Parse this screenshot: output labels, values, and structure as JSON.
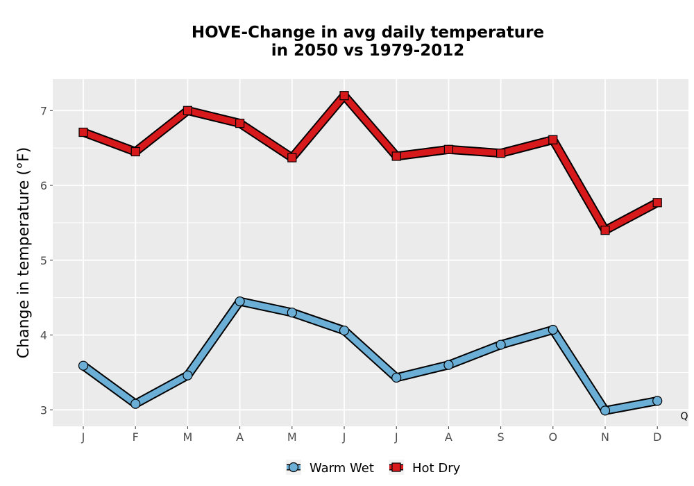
{
  "chart_data": {
    "type": "line",
    "title_line1": "HOVE-Change in avg daily temperature",
    "title_line2": "in 2050 vs 1979-2012",
    "ylabel": "Change in temperature (°F)",
    "xlabel": "",
    "categories": [
      "J",
      "F",
      "M",
      "A",
      "M",
      "J",
      "J",
      "A",
      "S",
      "O",
      "N",
      "D"
    ],
    "yticks": [
      3,
      4,
      5,
      6,
      7
    ],
    "ylim": [
      2.78,
      7.42
    ],
    "grid": true,
    "legend_position": "bottom",
    "series": [
      {
        "name": "Warm Wet",
        "marker": "circle",
        "color": "#6baed6",
        "values": [
          3.59,
          3.08,
          3.46,
          4.45,
          4.3,
          4.06,
          3.43,
          3.6,
          3.87,
          4.07,
          2.99,
          3.12
        ]
      },
      {
        "name": "Hot Dry",
        "marker": "square",
        "color": "#d7191c",
        "values": [
          6.71,
          6.45,
          7.0,
          6.83,
          6.37,
          7.2,
          6.39,
          6.48,
          6.43,
          6.61,
          5.4,
          5.77
        ]
      }
    ],
    "corner_label": "Q"
  },
  "colors": {
    "panel": "#ebebeb",
    "grid": "#ffffff",
    "outline": "#000000"
  }
}
